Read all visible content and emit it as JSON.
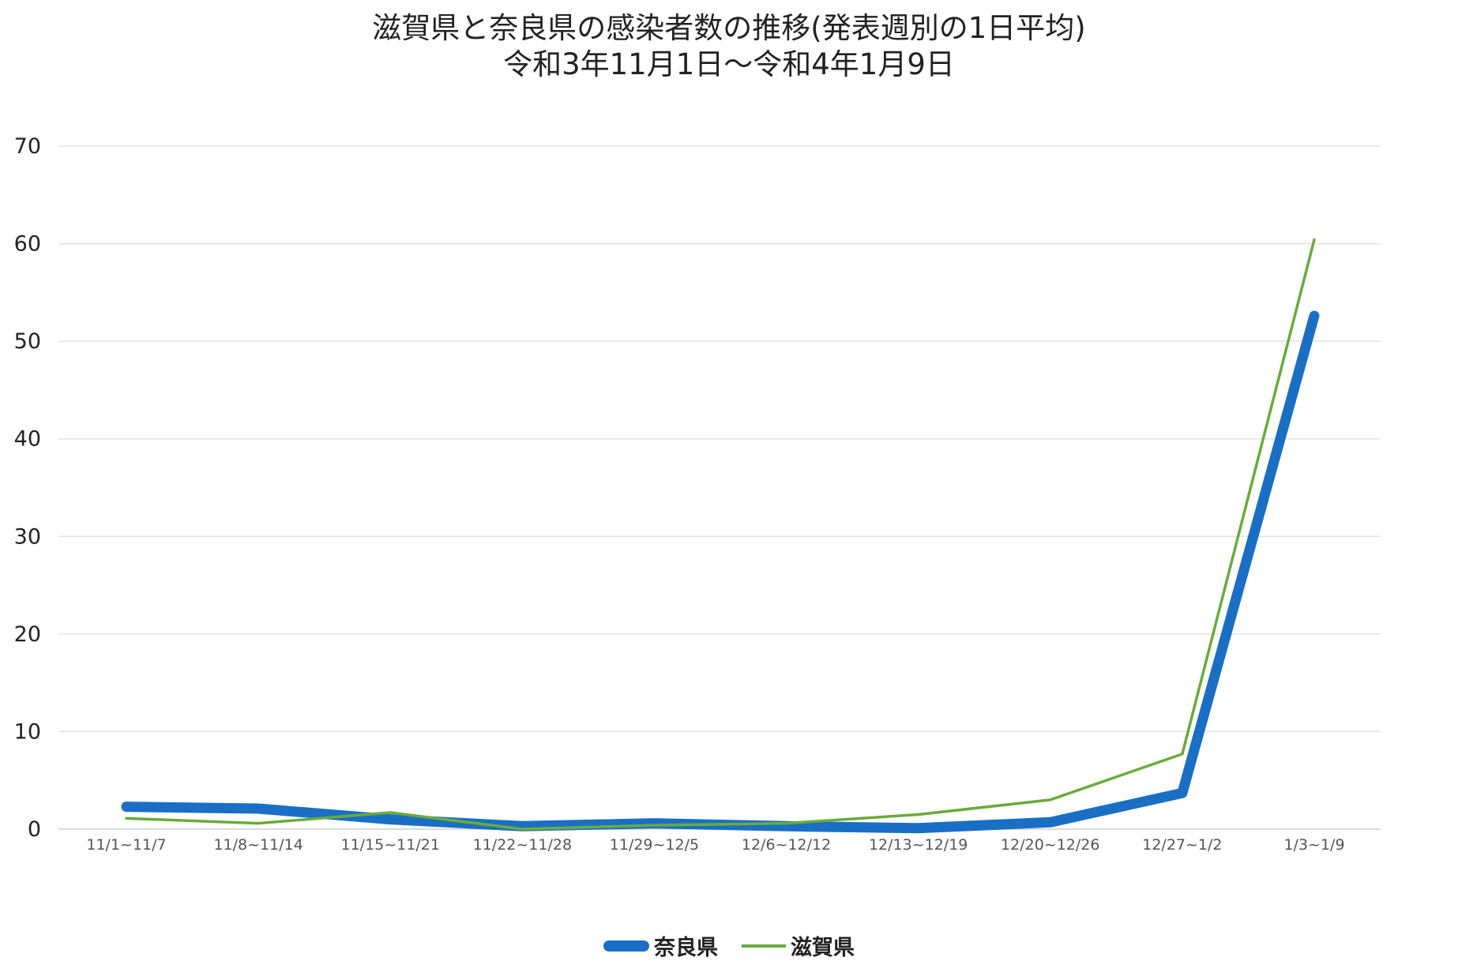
{
  "title": {
    "line1": "滋賀県と奈良県の感染者数の推移(発表週別の1日平均)",
    "line2": "令和3年11月1日～令和4年1月9日"
  },
  "chart_data": {
    "type": "line",
    "categories": [
      "11/1~11/7",
      "11/8~11/14",
      "11/15~11/21",
      "11/22~11/28",
      "11/29~12/5",
      "12/6~12/12",
      "12/13~12/19",
      "12/20~12/26",
      "12/27~1/2",
      "1/3~1/9"
    ],
    "series": [
      {
        "name": "奈良県",
        "color": "#1a6fc4",
        "style": "thick",
        "values": [
          2.3,
          2.1,
          1.0,
          0.3,
          0.6,
          0.3,
          0.1,
          0.7,
          3.7,
          52.6
        ]
      },
      {
        "name": "滋賀県",
        "color": "#6aab3c",
        "style": "thin",
        "values": [
          1.1,
          0.6,
          1.7,
          0.0,
          0.4,
          0.6,
          1.5,
          3.0,
          7.7,
          60.4
        ]
      }
    ],
    "ylim": [
      0,
      70
    ],
    "yticks": [
      0,
      10,
      20,
      30,
      40,
      50,
      60,
      70
    ],
    "xlabel": "",
    "ylabel": "",
    "grid": true,
    "legend_position": "bottom-center"
  }
}
